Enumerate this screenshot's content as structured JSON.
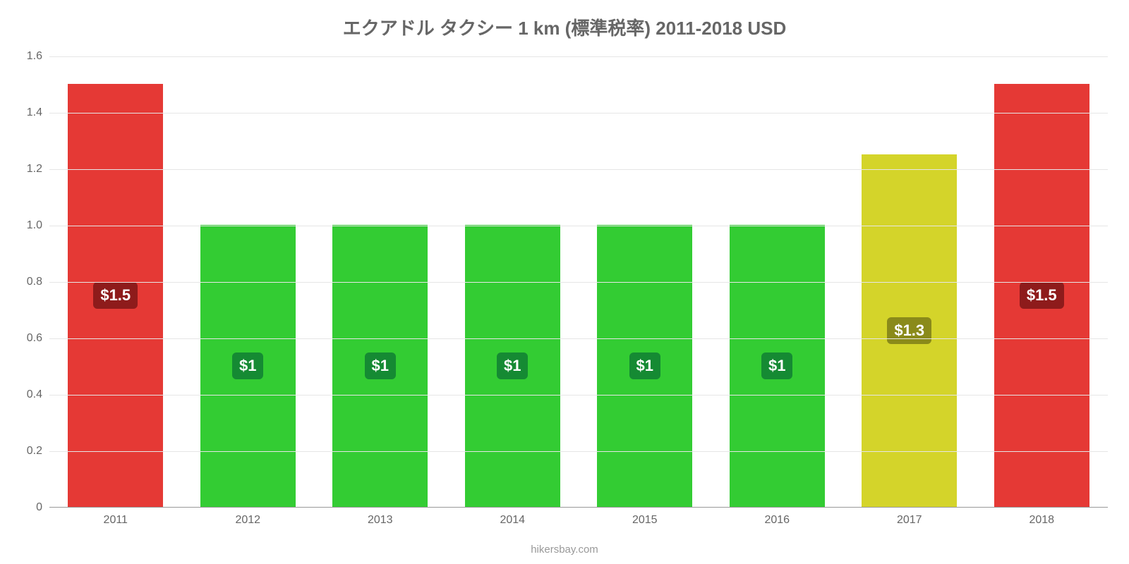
{
  "chart": {
    "type": "bar",
    "title": "エクアドル タクシー 1 km (標準税率) 2011-2018 USD",
    "title_fontsize": 26,
    "title_color": "#666666",
    "categories": [
      "2011",
      "2012",
      "2013",
      "2014",
      "2015",
      "2016",
      "2017",
      "2018"
    ],
    "values": [
      1.5,
      1.0,
      1.0,
      1.0,
      1.0,
      1.0,
      1.25,
      1.5
    ],
    "value_labels": [
      "$1.5",
      "$1",
      "$1",
      "$1",
      "$1",
      "$1",
      "$1.3",
      "$1.5"
    ],
    "bar_colors": [
      "#e53935",
      "#33cc33",
      "#33cc33",
      "#33cc33",
      "#33cc33",
      "#33cc33",
      "#d4d42a",
      "#e53935"
    ],
    "badge_colors": [
      "#8e1b1b",
      "#158a33",
      "#158a33",
      "#158a33",
      "#158a33",
      "#158a33",
      "#8a8a1a",
      "#8e1b1b"
    ],
    "badge_text_color": "#ffffff",
    "ylim": [
      0,
      1.6
    ],
    "ytick_step": 0.2,
    "ytick_labels": [
      "0",
      "0.2",
      "0.4",
      "0.6",
      "0.8",
      "1.0",
      "1.2",
      "1.4",
      "1.6"
    ],
    "bar_width": 0.72,
    "grid_color": "#e6e6e6",
    "axis_color": "#999999",
    "background_color": "#ffffff",
    "tick_fontsize": 16,
    "value_label_fontsize": 22,
    "source_label": "hikersbay.com",
    "source_fontsize": 15,
    "source_color": "#999999"
  }
}
